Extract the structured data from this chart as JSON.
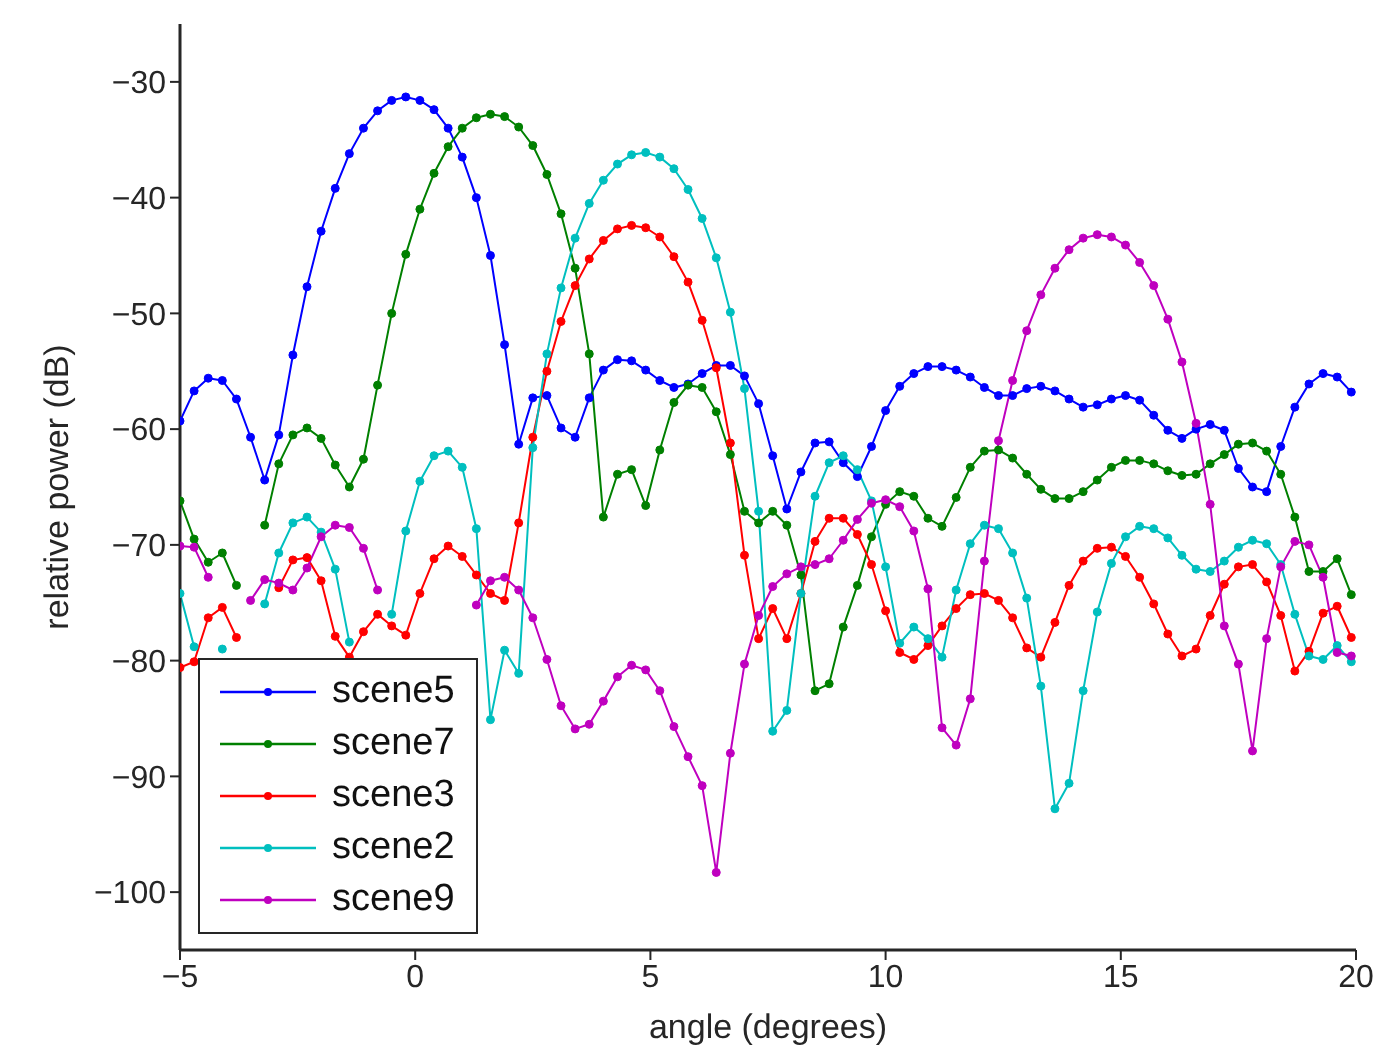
{
  "chart_data": {
    "type": "line",
    "xlabel": "angle (degrees)",
    "ylabel": "relative power (dB)",
    "xlim": [
      -5,
      20
    ],
    "xticks": [
      -5,
      0,
      5,
      10,
      15,
      20
    ],
    "ylim": [
      -105,
      -25
    ],
    "yticks": [
      -100,
      -90,
      -80,
      -70,
      -60,
      -50,
      -40,
      -30
    ],
    "grid": false,
    "legend": "bottom left",
    "marker": "circle",
    "x": [
      -5,
      -4.7,
      -4.4,
      -4.1,
      -3.8,
      -3.5,
      -3.2,
      -2.9,
      -2.6,
      -2.3,
      -2,
      -1.7,
      -1.4,
      -1.1,
      -0.8,
      -0.5,
      -0.2,
      0.1,
      0.4,
      0.7,
      1,
      1.3,
      1.6,
      1.9,
      2.2,
      2.5,
      2.8,
      3.1,
      3.4,
      3.7,
      4,
      4.3,
      4.6,
      4.9,
      5.2,
      5.5,
      5.8,
      6.1,
      6.4,
      6.7,
      7,
      7.3,
      7.6,
      7.9,
      8.2,
      8.5,
      8.8,
      9.1,
      9.4,
      9.7,
      10,
      10.3,
      10.6,
      10.9,
      11.2,
      11.5,
      11.8,
      12.1,
      12.4,
      12.7,
      13,
      13.3,
      13.6,
      13.9,
      14.2,
      14.5,
      14.8,
      15.1,
      15.4,
      15.7,
      16,
      16.3,
      16.6,
      16.9,
      17.2,
      17.5,
      17.8,
      18.1,
      18.4,
      18.7,
      19,
      19.3,
      19.6,
      19.9
    ],
    "series": [
      {
        "name": "scene5",
        "color": "#0000ff",
        "values": [
          -59.3,
          -56.7,
          -55.6,
          -55.8,
          -57.4,
          -60.7,
          -64.4,
          -60.5,
          -53.6,
          -47.7,
          -42.9,
          -39.2,
          -36.2,
          -34.0,
          -32.5,
          -31.6,
          -31.3,
          -31.6,
          -32.4,
          -34.0,
          -36.5,
          -40.0,
          -45.0,
          -52.7,
          -61.3,
          -57.3,
          -57.1,
          -59.9,
          -60.7,
          -57.3,
          -54.9,
          -54.0,
          -54.1,
          -54.9,
          -55.8,
          -56.4,
          -56.1,
          -55.2,
          -54.5,
          -54.5,
          -55.4,
          -57.8,
          -62.3,
          -66.9,
          -63.7,
          -61.2,
          -61.1,
          -62.9,
          -64.1,
          -61.5,
          -58.4,
          -56.3,
          -55.2,
          -54.6,
          -54.6,
          -54.9,
          -55.5,
          -56.4,
          -57.1,
          -57.1,
          -56.5,
          -56.3,
          -56.7,
          -57.4,
          -58.1,
          -57.9,
          -57.4,
          -57.1,
          -57.5,
          -58.8,
          -60.1,
          -60.8,
          -60.0,
          -59.6,
          -60.1,
          -63.4,
          -65.0,
          -65.4,
          -61.5,
          -58.1,
          -56.1,
          -55.2,
          -55.5,
          -56.8
        ]
      },
      {
        "name": "scene7",
        "color": "#008000",
        "values": [
          -66.2,
          -69.5,
          -71.5,
          -70.7,
          -73.5,
          null,
          -68.3,
          -63.0,
          -60.5,
          -59.9,
          -60.8,
          -63.1,
          -65.0,
          -62.6,
          -56.2,
          -50.0,
          -44.9,
          -41.0,
          -37.9,
          -35.6,
          -34.0,
          -33.1,
          -32.8,
          -33.0,
          -33.9,
          -35.5,
          -38.0,
          -41.4,
          -46.1,
          -53.5,
          -67.6,
          -63.9,
          -63.5,
          -66.6,
          -61.8,
          -57.7,
          -56.2,
          -56.4,
          -58.5,
          -62.2,
          -67.1,
          -68.1,
          -67.1,
          -68.3,
          -72.6,
          -82.6,
          -82.0,
          -77.1,
          -73.5,
          -69.3,
          -66.5,
          -65.4,
          -65.8,
          -67.7,
          -68.4,
          -65.9,
          -63.3,
          -61.9,
          -61.8,
          -62.5,
          -63.9,
          -65.2,
          -66.0,
          -66.0,
          -65.4,
          -64.4,
          -63.3,
          -62.7,
          -62.7,
          -63.0,
          -63.6,
          -64.0,
          -63.9,
          -63.0,
          -62.2,
          -61.3,
          -61.2,
          -61.9,
          -63.9,
          -67.6,
          -72.3,
          -72.3,
          -71.2,
          -74.3
        ]
      },
      {
        "name": "scene3",
        "color": "#ff0000",
        "values": [
          -80.6,
          -80.1,
          -76.3,
          -75.4,
          -78.0,
          null,
          null,
          -73.7,
          -71.3,
          -71.1,
          -73.1,
          -77.9,
          -79.7,
          -77.5,
          -76.0,
          -77.0,
          -77.8,
          -74.2,
          -71.2,
          -70.1,
          -71.0,
          -72.6,
          -74.2,
          -74.8,
          -68.1,
          -60.7,
          -55.0,
          -50.7,
          -47.6,
          -45.3,
          -43.7,
          -42.7,
          -42.4,
          -42.6,
          -43.4,
          -45.1,
          -47.3,
          -50.6,
          -54.7,
          -61.2,
          -70.9,
          -78.1,
          -75.5,
          -78.1,
          -74.2,
          -69.7,
          -67.7,
          -67.7,
          -69.1,
          -71.7,
          -75.7,
          -79.3,
          -79.9,
          -78.7,
          -77.0,
          -75.5,
          -74.3,
          -74.2,
          -74.8,
          -76.3,
          -78.9,
          -79.7,
          -76.7,
          -73.5,
          -71.4,
          -70.3,
          -70.2,
          -71.0,
          -72.8,
          -75.1,
          -77.7,
          -79.6,
          -79.0,
          -76.1,
          -73.4,
          -71.9,
          -71.7,
          -73.2,
          -76.1,
          -80.9,
          -79.2,
          -75.9,
          -75.3,
          -78.0
        ]
      },
      {
        "name": "scene2",
        "color": "#00bfbf",
        "values": [
          -74.2,
          -78.8,
          null,
          -79.0,
          null,
          null,
          -75.1,
          -70.7,
          -68.1,
          -67.6,
          -68.9,
          -72.1,
          -78.4,
          null,
          null,
          -76.0,
          -68.8,
          -64.5,
          -62.3,
          -61.9,
          -63.3,
          -68.6,
          -85.1,
          -79.1,
          -81.1,
          -61.6,
          -53.5,
          -47.8,
          -43.5,
          -40.5,
          -38.5,
          -37.1,
          -36.3,
          -36.1,
          -36.5,
          -37.5,
          -39.3,
          -41.8,
          -45.2,
          -49.9,
          -56.5,
          -67.1,
          -86.1,
          -84.3,
          -74.2,
          -65.8,
          -62.9,
          -62.3,
          -63.5,
          -66.2,
          -71.9,
          -78.5,
          -77.1,
          -78.1,
          -79.7,
          -73.9,
          -69.9,
          -68.3,
          -68.6,
          -70.7,
          -74.6,
          -82.2,
          -92.8,
          -90.6,
          -82.6,
          -75.8,
          -71.6,
          -69.3,
          -68.4,
          -68.6,
          -69.4,
          -70.9,
          -72.1,
          -72.3,
          -71.4,
          -70.2,
          -69.6,
          -69.9,
          -71.7,
          -76.0,
          -79.6,
          -79.9,
          -78.7,
          -80.1
        ]
      },
      {
        "name": "scene9",
        "color": "#bf00bf",
        "values": [
          -70.1,
          -70.2,
          -72.8,
          null,
          null,
          -74.8,
          -73.0,
          -73.3,
          -73.9,
          -72.0,
          -69.3,
          -68.3,
          -68.5,
          -70.3,
          -73.9,
          null,
          null,
          null,
          null,
          null,
          null,
          -75.2,
          -73.1,
          -72.8,
          -73.9,
          -76.3,
          -79.9,
          -83.9,
          -85.9,
          -85.5,
          -83.5,
          -81.4,
          -80.4,
          -80.8,
          -82.6,
          -85.7,
          -88.3,
          -90.8,
          -98.3,
          -88.0,
          -80.3,
          -76.1,
          -73.6,
          -72.5,
          -71.9,
          -71.7,
          -71.2,
          -69.6,
          -67.8,
          -66.4,
          -66.1,
          -66.7,
          -68.8,
          -73.8,
          -85.8,
          -87.3,
          -83.3,
          -71.4,
          -61.0,
          -55.8,
          -51.5,
          -48.4,
          -46.1,
          -44.5,
          -43.5,
          -43.2,
          -43.4,
          -44.1,
          -45.6,
          -47.6,
          -50.5,
          -54.2,
          -59.5,
          -66.5,
          -77.0,
          -80.3,
          -87.8,
          -78.1,
          -71.9,
          -69.7,
          -70.0,
          -72.8,
          -79.3,
          -79.6
        ]
      }
    ]
  }
}
